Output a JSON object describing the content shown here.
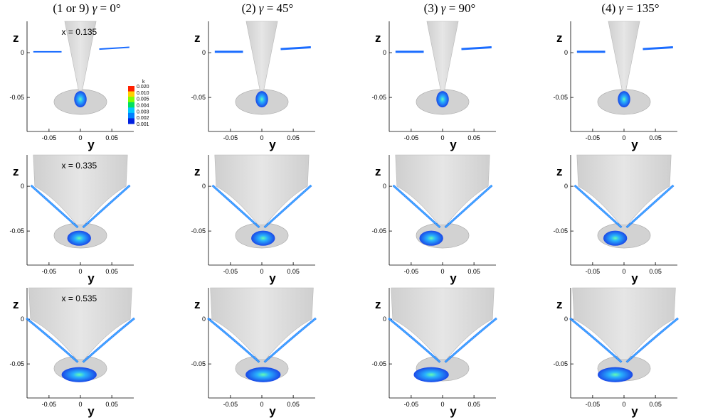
{
  "chart_data": {
    "type": "contour",
    "columns": [
      {
        "index": "(1 or 9)",
        "gamma": "0°"
      },
      {
        "index": "(2)",
        "gamma": "45°"
      },
      {
        "index": "(3)",
        "gamma": "90°"
      },
      {
        "index": "(4)",
        "gamma": "135°"
      }
    ],
    "gamma_symbol": "γ",
    "rows": [
      {
        "station": "x = 0.135"
      },
      {
        "station": "x = 0.335"
      },
      {
        "station": "x = 0.535"
      }
    ],
    "xlabel": "y",
    "ylabel": "z",
    "xticks": [
      "-0.05",
      "0",
      "0.05"
    ],
    "yticks": [
      "0",
      "-0.05"
    ],
    "xlim": [
      -0.085,
      0.085
    ],
    "ylim": [
      -0.088,
      0.035
    ],
    "colorbar": {
      "title": "k",
      "levels": [
        "0.020",
        "0.010",
        "0.005",
        "0.004",
        "0.003",
        "0.002",
        "0.001"
      ],
      "colors": [
        "#ff2000",
        "#ffd000",
        "#80ff00",
        "#00e060",
        "#00c8ff",
        "#0080ff",
        "#0020e0"
      ]
    },
    "colors": {
      "hull": "#dadada",
      "hull_edge": "#b0b0b0",
      "low": "#1a5cff",
      "high": "#30ff90"
    }
  }
}
